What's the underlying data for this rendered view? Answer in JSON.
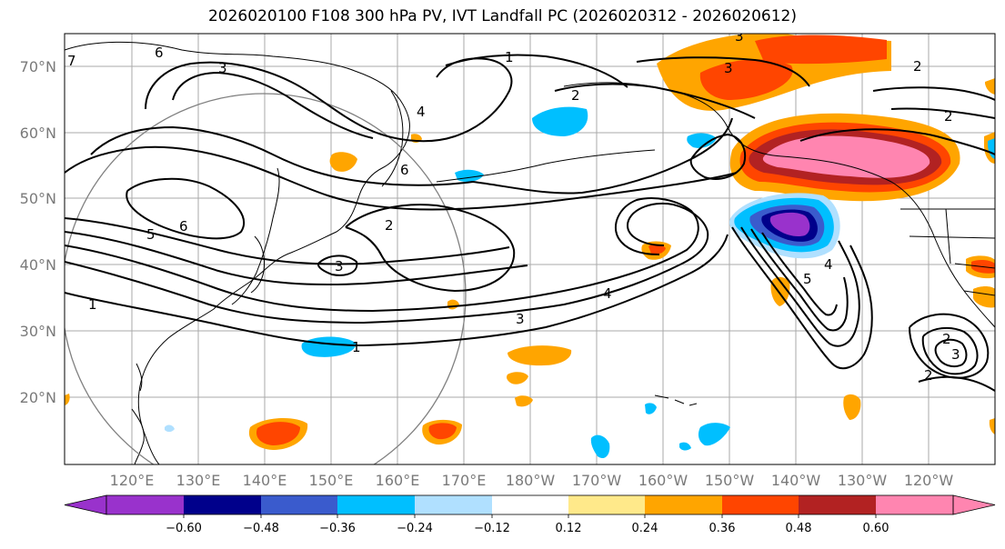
{
  "title": "2026020100 F108 300 hPa PV, IVT Landfall PC (2026020312 - 2026020612)",
  "latitude_labels": [
    "70°N",
    "60°N",
    "50°N",
    "40°N",
    "30°N",
    "20°N"
  ],
  "longitude_labels": [
    "120°E",
    "130°E",
    "140°E",
    "150°E",
    "160°E",
    "170°E",
    "180°W",
    "170°W",
    "160°W",
    "150°W",
    "140°W",
    "130°W",
    "120°W"
  ],
  "colorbar": {
    "ticks": [
      "−0.60",
      "−0.48",
      "−0.36",
      "−0.24",
      "−0.12",
      "0.12",
      "0.24",
      "0.36",
      "0.48",
      "0.60"
    ],
    "colors": [
      "#9932cc",
      "#00008b",
      "#3a5bcd",
      "#00bfff",
      "#b0e0ff",
      "#ffffff",
      "#ffe98a",
      "#ffa500",
      "#ff4500",
      "#b22222",
      "#ff85b0"
    ]
  },
  "contour_labels": [
    "7",
    "6",
    "3",
    "1",
    "2",
    "3",
    "2",
    "4",
    "3",
    "2",
    "6",
    "5",
    "6",
    "2",
    "3",
    "4",
    "3",
    "1",
    "5",
    "4",
    "1",
    "2",
    "3",
    "2"
  ],
  "colors": {
    "contour": "#000000",
    "grid": "#aaaaaa",
    "circle": "#808080"
  }
}
